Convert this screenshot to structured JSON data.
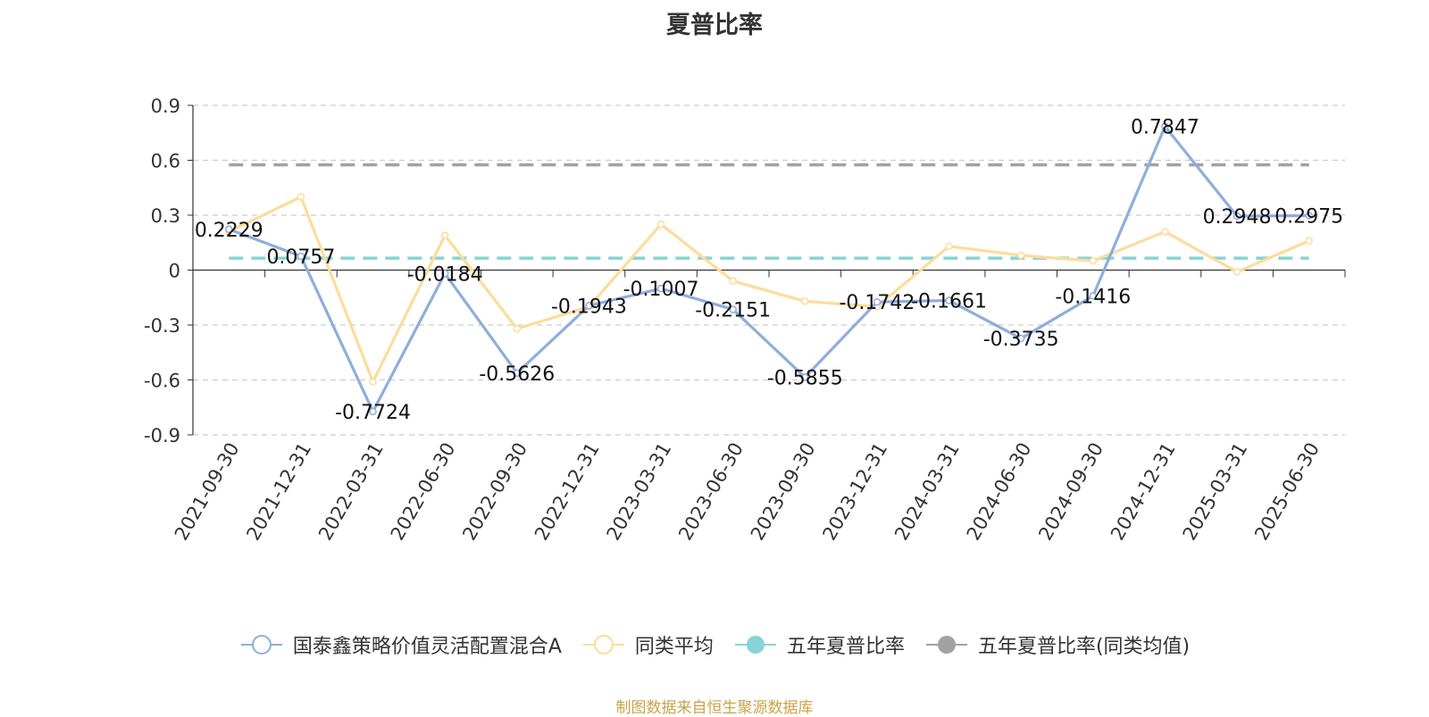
{
  "title": "夏普比率",
  "source": "制图数据来自恒生聚源数据库",
  "chart_data": {
    "type": "line",
    "title": "夏普比率",
    "categories": [
      "2021-09-30",
      "2021-12-31",
      "2022-03-31",
      "2022-06-30",
      "2022-09-30",
      "2022-12-31",
      "2023-03-31",
      "2023-06-30",
      "2023-09-30",
      "2023-12-31",
      "2024-03-31",
      "2024-06-30",
      "2024-09-30",
      "2024-12-31",
      "2025-03-31",
      "2025-06-30"
    ],
    "ylim": [
      -0.9,
      0.9
    ],
    "yticks": [
      0.9,
      0.6,
      0.3,
      0,
      -0.3,
      -0.6,
      -0.9
    ],
    "ytick_labels": [
      "0.9",
      "0.6",
      "0.3",
      "0",
      "-0.3",
      "-0.6",
      "-0.9"
    ],
    "grid": true,
    "legend_position": "bottom",
    "series": [
      {
        "name": "国泰鑫策略价值灵活配置混合A",
        "color": "#8eaedc",
        "values": [
          0.2229,
          0.0757,
          -0.7724,
          -0.0184,
          -0.5626,
          -0.1943,
          -0.1007,
          -0.2151,
          -0.5855,
          -0.1742,
          -0.1661,
          -0.3735,
          -0.1416,
          0.7847,
          0.2948,
          0.2975
        ],
        "labels": [
          "0.2229",
          "0.0757",
          "-0.7724",
          "-0.0184",
          "-0.5626",
          "-0.1943",
          "-0.1007",
          "-0.2151",
          "-0.5855",
          "-0.1742",
          "-0.1661",
          "-0.3735",
          "-0.1416",
          "0.7847",
          "0.2948",
          "0.2975"
        ]
      },
      {
        "name": "同类平均",
        "color": "#fddc9b",
        "values": [
          0.21,
          0.4,
          -0.61,
          0.19,
          -0.32,
          -0.2,
          0.25,
          -0.06,
          -0.17,
          -0.2,
          0.13,
          0.08,
          0.05,
          0.21,
          -0.01,
          0.16
        ]
      },
      {
        "name": "五年夏普比率",
        "color": "#86d4d6",
        "value": 0.065,
        "style": "dashed"
      },
      {
        "name": "五年夏普比率(同类均值)",
        "color": "#a2a2a2",
        "value": 0.575,
        "style": "dashed"
      }
    ]
  }
}
